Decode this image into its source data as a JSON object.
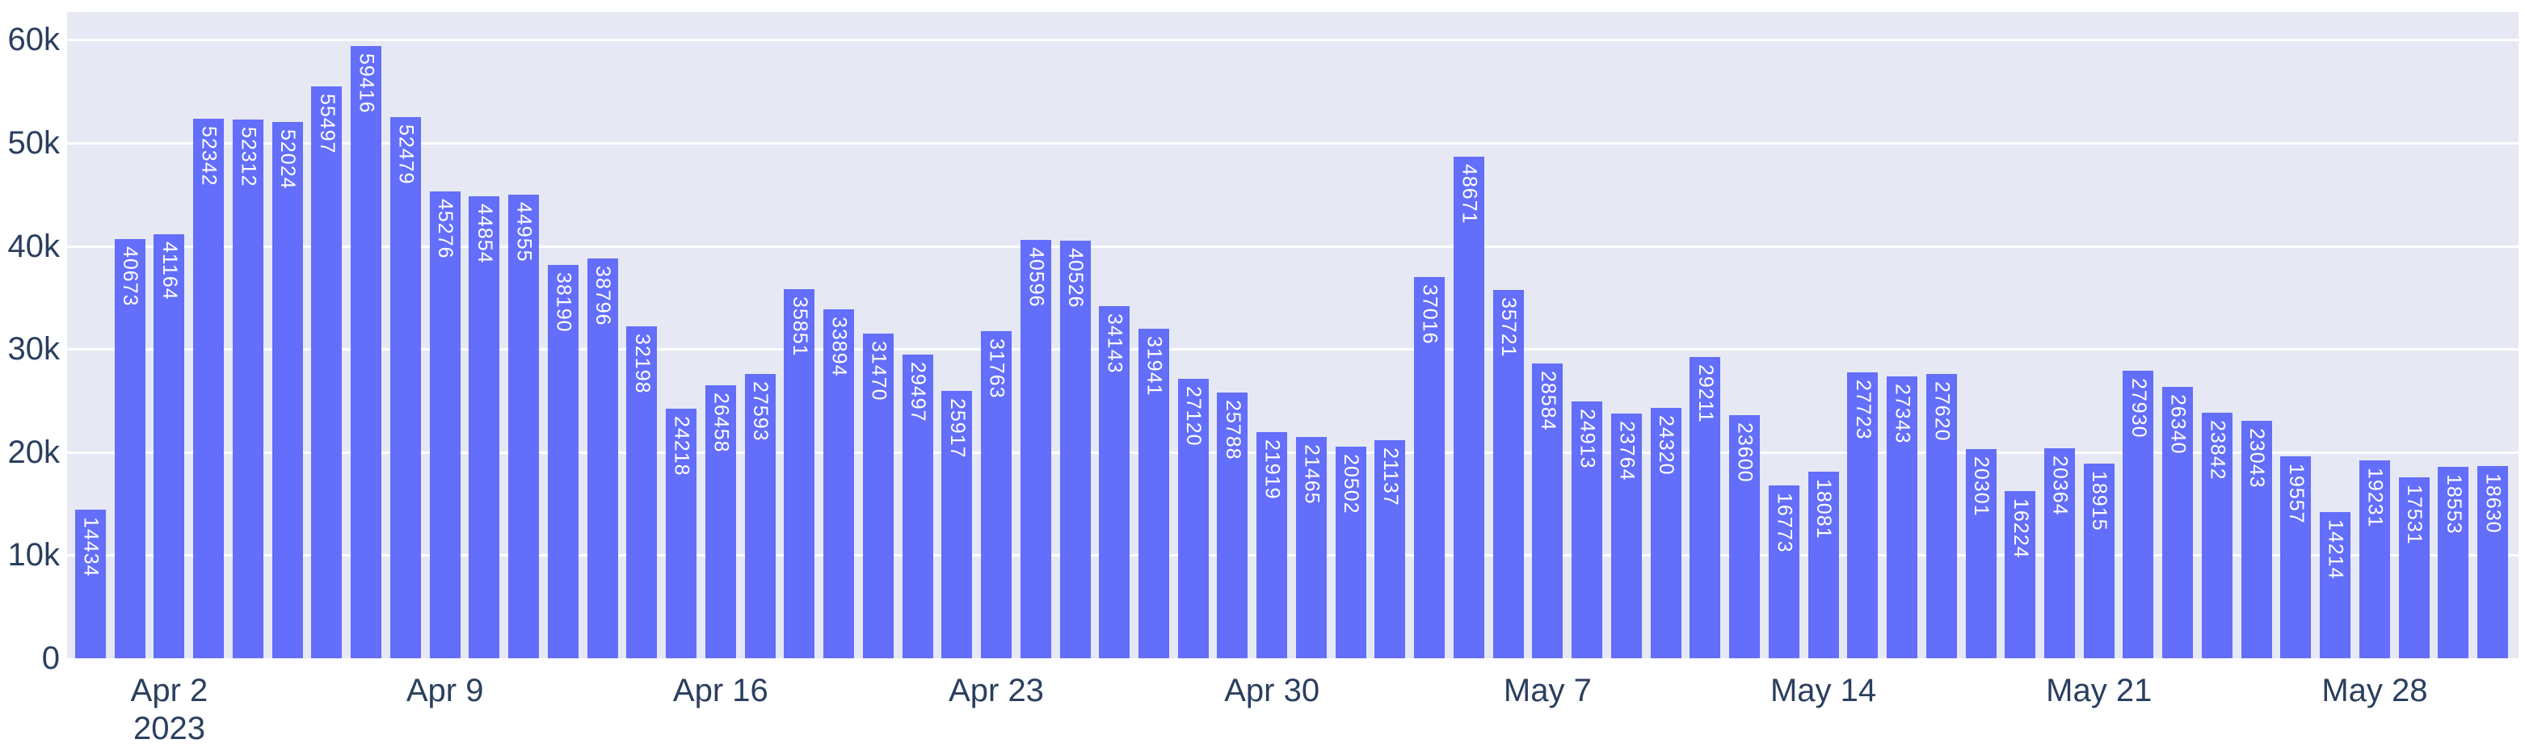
{
  "chart_data": {
    "type": "bar",
    "title": "",
    "xlabel": "",
    "ylabel": "",
    "values": [
      14434,
      40673,
      41164,
      52342,
      52312,
      52024,
      55497,
      59416,
      52479,
      45276,
      44854,
      44955,
      38190,
      38796,
      32198,
      24218,
      26458,
      27593,
      35851,
      33894,
      31470,
      29497,
      25917,
      31763,
      40596,
      40526,
      34143,
      31941,
      27120,
      25788,
      21919,
      21465,
      20502,
      21137,
      37016,
      48671,
      35721,
      28584,
      24913,
      23764,
      24320,
      29211,
      23600,
      16773,
      18081,
      27723,
      27343,
      27620,
      20301,
      16224,
      20364,
      18915,
      27930,
      26340,
      23842,
      23043,
      19557,
      14214,
      19231,
      17531,
      18553,
      18630
    ],
    "bars_show_value_labels_inside_top": true,
    "x_axis": {
      "tick_labels": [
        "Apr 2",
        "Apr 9",
        "Apr 16",
        "Apr 23",
        "Apr 30",
        "May 7",
        "May 14",
        "May 21",
        "May 28"
      ],
      "tick_bar_indices": [
        2,
        9,
        16,
        23,
        30,
        37,
        44,
        51,
        58
      ],
      "year_label": "2023",
      "year_label_under_tick": "Apr 2"
    },
    "y_axis": {
      "tick_labels": [
        "0",
        "10k",
        "20k",
        "30k",
        "40k",
        "50k",
        "60k"
      ],
      "tick_values": [
        0,
        10000,
        20000,
        30000,
        40000,
        50000,
        60000
      ],
      "range": [
        0,
        62700
      ]
    },
    "grid": "horizontal-white-lines",
    "legend": "none",
    "colors": {
      "bar": "#636efa",
      "bar_label_text": "#ffffff",
      "plot_background": "#e6e9f3",
      "paper_background": "#ffffff",
      "axis_text": "#2a3f5f",
      "gridline": "#ffffff"
    }
  }
}
